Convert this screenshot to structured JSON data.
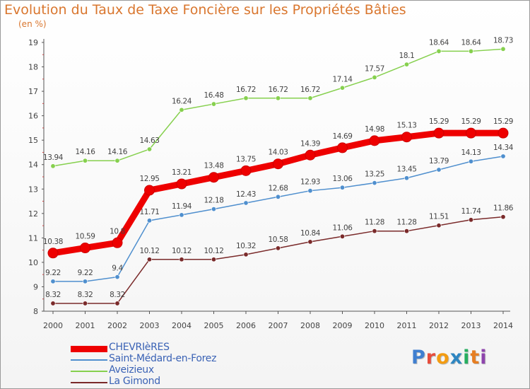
{
  "title": "Evolution du Taux de Taxe Foncière sur les Propriétés Bâties",
  "subtitle": "(en %)",
  "logo": {
    "text": "Proxiti",
    "letters": [
      {
        "ch": "P",
        "color": "#3f7fd0"
      },
      {
        "ch": "r",
        "color": "#e74c3c"
      },
      {
        "ch": "o",
        "color": "#f39c12"
      },
      {
        "ch": "x",
        "color": "#2e86c1"
      },
      {
        "ch": "i",
        "color": "#27ae60"
      },
      {
        "ch": "t",
        "color": "#e67e22"
      },
      {
        "ch": "i",
        "color": "#8e44ad"
      }
    ]
  },
  "chart_data": {
    "type": "line",
    "title": "Evolution du Taux de Taxe Foncière sur les Propriétés Bâties",
    "ylabel": "(en %)",
    "ylim": [
      8,
      19
    ],
    "yticks": [
      "8",
      "9",
      "10",
      "11",
      "12",
      "13",
      "14",
      "15",
      "16",
      "17",
      "18",
      "19"
    ],
    "x": [
      "2000",
      "2001",
      "2002",
      "2003",
      "2004",
      "2005",
      "2006",
      "2007",
      "2008",
      "2009",
      "2010",
      "2011",
      "2012",
      "2013",
      "2014"
    ],
    "grid": false,
    "legend": "bottom-left",
    "series": [
      {
        "name": "CHEVRIèRES",
        "color": "#ee0000",
        "emphasis": true,
        "values": [
          10.38,
          10.59,
          10.8,
          12.95,
          13.21,
          13.48,
          13.75,
          14.03,
          14.39,
          14.69,
          14.98,
          15.13,
          15.29,
          15.29,
          15.29
        ],
        "labels": [
          "10.38",
          "10.59",
          "10.8",
          "12.95",
          "13.21",
          "13.48",
          "13.75",
          "14.03",
          "14.39",
          "14.69",
          "14.98",
          "15.13",
          "15.29",
          "15.29",
          "15.29"
        ]
      },
      {
        "name": "Saint-Médard-en-Forez",
        "color": "#4f8fce",
        "emphasis": false,
        "values": [
          9.22,
          9.22,
          9.4,
          11.71,
          11.94,
          12.18,
          12.43,
          12.68,
          12.93,
          13.06,
          13.25,
          13.45,
          13.79,
          14.13,
          14.34
        ],
        "labels": [
          "9.22",
          "9.22",
          "9.4",
          "11.71",
          "11.94",
          "12.18",
          "12.43",
          "12.68",
          "12.93",
          "13.06",
          "13.25",
          "13.45",
          "13.79",
          "14.13",
          "14.34"
        ]
      },
      {
        "name": "Aveizieux",
        "color": "#86d04e",
        "emphasis": false,
        "values": [
          13.94,
          14.16,
          14.16,
          14.63,
          16.24,
          16.48,
          16.72,
          16.72,
          16.72,
          17.14,
          17.57,
          18.1,
          18.64,
          18.64,
          18.73
        ],
        "labels": [
          "13.94",
          "14.16",
          "14.16",
          "14.63",
          "16.24",
          "16.48",
          "16.72",
          "16.72",
          "16.72",
          "17.14",
          "17.57",
          "18.1",
          "18.64",
          "18.64",
          "18.73"
        ]
      },
      {
        "name": "La Gimond",
        "color": "#7a2a2a",
        "emphasis": false,
        "values": [
          8.32,
          8.32,
          8.32,
          10.12,
          10.12,
          10.12,
          10.32,
          10.58,
          10.84,
          11.06,
          11.28,
          11.28,
          11.51,
          11.74,
          11.86
        ],
        "labels": [
          "8.32",
          "8.32",
          "8.32",
          "10.12",
          "10.12",
          "10.12",
          "10.32",
          "10.58",
          "10.84",
          "11.06",
          "11.28",
          "11.28",
          "11.51",
          "11.74",
          "11.86"
        ]
      }
    ]
  }
}
